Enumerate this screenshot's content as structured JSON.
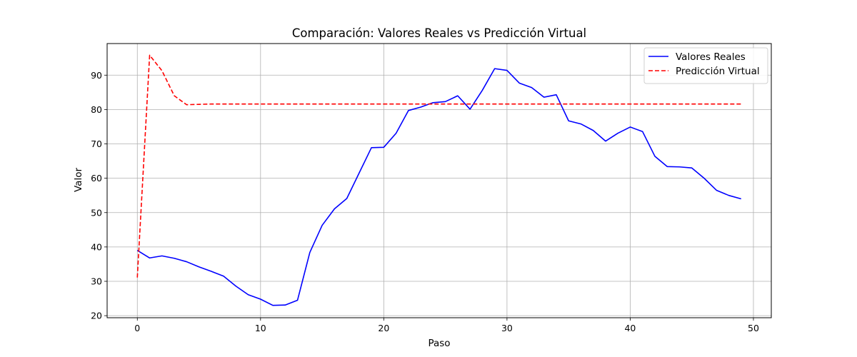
{
  "chart_data": {
    "type": "line",
    "title": "Comparación: Valores Reales vs Predicción Virtual",
    "xlabel": "Paso",
    "ylabel": "Valor",
    "xlim": [
      -2.45,
      51.45
    ],
    "ylim": [
      19.4,
      99.2
    ],
    "xticks": [
      0,
      10,
      20,
      30,
      40,
      50
    ],
    "yticks": [
      20,
      30,
      40,
      50,
      60,
      70,
      80,
      90
    ],
    "grid": true,
    "legend_position": "top-right",
    "series": [
      {
        "name": "Valores Reales",
        "color": "#0000ff",
        "style": "solid",
        "x": [
          0,
          1,
          2,
          3,
          4,
          5,
          6,
          7,
          8,
          9,
          10,
          11,
          12,
          13,
          14,
          15,
          16,
          17,
          18,
          19,
          20,
          21,
          22,
          23,
          24,
          25,
          26,
          27,
          28,
          29,
          30,
          31,
          32,
          33,
          34,
          35,
          36,
          37,
          38,
          39,
          40,
          41,
          42,
          43,
          44,
          45,
          46,
          47,
          48,
          49
        ],
        "values": [
          39.0,
          36.8,
          37.4,
          36.7,
          35.7,
          34.2,
          32.9,
          31.5,
          28.6,
          26.1,
          24.8,
          23.0,
          23.1,
          24.5,
          38.4,
          46.3,
          51.1,
          54.1,
          61.5,
          68.9,
          69.0,
          73.1,
          79.7,
          80.7,
          82.0,
          82.3,
          84.0,
          80.1,
          85.6,
          91.9,
          91.4,
          87.7,
          86.4,
          83.6,
          84.3,
          76.7,
          75.8,
          73.9,
          70.8,
          73.1,
          74.9,
          73.6,
          66.4,
          63.4,
          63.3,
          63.0,
          60.0,
          56.5,
          55.0,
          54.0
        ]
      },
      {
        "name": "Predicción Virtual",
        "color": "#ff0000",
        "style": "dashed",
        "x": [
          0,
          1,
          2,
          3,
          4,
          5,
          6,
          7,
          8,
          9,
          10,
          11,
          12,
          13,
          14,
          15,
          16,
          17,
          18,
          19,
          20,
          21,
          22,
          23,
          24,
          25,
          26,
          27,
          28,
          29,
          30,
          31,
          32,
          33,
          34,
          35,
          36,
          37,
          38,
          39,
          40,
          41,
          42,
          43,
          44,
          45,
          46,
          47,
          48,
          49
        ],
        "values": [
          31.1,
          95.8,
          91.3,
          84.0,
          81.4,
          81.5,
          81.6,
          81.6,
          81.6,
          81.6,
          81.6,
          81.6,
          81.6,
          81.6,
          81.6,
          81.6,
          81.6,
          81.6,
          81.6,
          81.6,
          81.6,
          81.6,
          81.6,
          81.6,
          81.6,
          81.6,
          81.6,
          81.6,
          81.6,
          81.6,
          81.6,
          81.6,
          81.6,
          81.6,
          81.6,
          81.6,
          81.6,
          81.6,
          81.6,
          81.6,
          81.6,
          81.6,
          81.6,
          81.6,
          81.6,
          81.6,
          81.6,
          81.6,
          81.6,
          81.6
        ]
      }
    ]
  }
}
